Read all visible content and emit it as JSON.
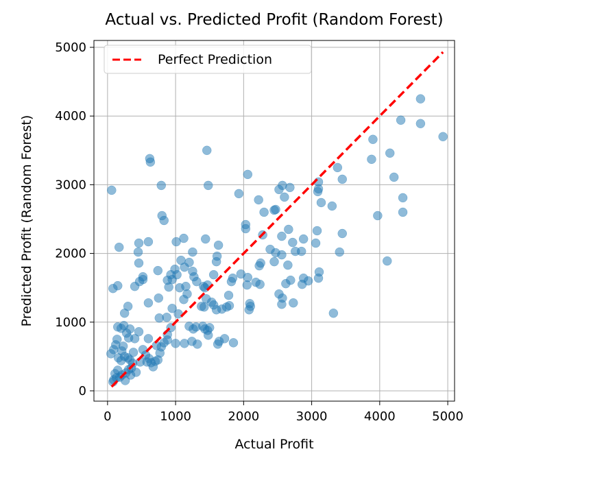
{
  "chart_data": {
    "type": "scatter",
    "title": "Actual vs. Predicted Profit (Random Forest)",
    "xlabel": "Actual Profit",
    "ylabel": "Predicted Profit (Random Forest)",
    "xlim": [
      -200,
      5100
    ],
    "ylim": [
      -150,
      5100
    ],
    "xticks": [
      0,
      1000,
      2000,
      3000,
      4000,
      5000
    ],
    "yticks": [
      0,
      1000,
      2000,
      3000,
      4000,
      5000
    ],
    "grid": true,
    "legend": {
      "position": "upper-left",
      "entries": [
        "Perfect Prediction"
      ]
    },
    "point_color": "#1f77b4",
    "line_color": "#ff0000",
    "reference_line": {
      "name": "Perfect Prediction",
      "x": [
        60,
        4930
      ],
      "y": [
        60,
        4930
      ],
      "style": "dashed"
    },
    "points": [
      [
        60,
        2920
      ],
      [
        80,
        1490
      ],
      [
        150,
        1530
      ],
      [
        170,
        2090
      ],
      [
        460,
        2150
      ],
      [
        450,
        2020
      ],
      [
        460,
        1860
      ],
      [
        600,
        2170
      ],
      [
        620,
        3380
      ],
      [
        630,
        3330
      ],
      [
        790,
        2990
      ],
      [
        800,
        2550
      ],
      [
        830,
        2480
      ],
      [
        1120,
        2220
      ],
      [
        1010,
        2170
      ],
      [
        1250,
        2020
      ],
      [
        1460,
        3500
      ],
      [
        1480,
        2990
      ],
      [
        1440,
        2210
      ],
      [
        1630,
        2120
      ],
      [
        1610,
        1960
      ],
      [
        1600,
        1880
      ],
      [
        1930,
        2870
      ],
      [
        2060,
        3150
      ],
      [
        2030,
        2420
      ],
      [
        2030,
        2360
      ],
      [
        2220,
        2780
      ],
      [
        2300,
        2600
      ],
      [
        2450,
        2630
      ],
      [
        2470,
        2640
      ],
      [
        2520,
        2930
      ],
      [
        2570,
        2990
      ],
      [
        2680,
        2960
      ],
      [
        2600,
        2820
      ],
      [
        3100,
        3040
      ],
      [
        3100,
        2940
      ],
      [
        3090,
        2900
      ],
      [
        3140,
        2740
      ],
      [
        3300,
        2690
      ],
      [
        3380,
        3250
      ],
      [
        3450,
        3080
      ],
      [
        3450,
        2290
      ],
      [
        3410,
        2020
      ],
      [
        3320,
        1130
      ],
      [
        3880,
        3370
      ],
      [
        3900,
        3660
      ],
      [
        3970,
        2550
      ],
      [
        4110,
        1890
      ],
      [
        4150,
        3460
      ],
      [
        4210,
        3110
      ],
      [
        4310,
        3940
      ],
      [
        4340,
        2810
      ],
      [
        4340,
        2600
      ],
      [
        4600,
        4250
      ],
      [
        4600,
        3890
      ],
      [
        4930,
        3700
      ],
      [
        2660,
        2350
      ],
      [
        2720,
        2160
      ],
      [
        2850,
        2030
      ],
      [
        2880,
        2210
      ],
      [
        2560,
        2250
      ],
      [
        2760,
        2030
      ],
      [
        3060,
        2150
      ],
      [
        3080,
        2330
      ],
      [
        3110,
        1730
      ],
      [
        3100,
        1640
      ],
      [
        2240,
        1550
      ],
      [
        2180,
        1580
      ],
      [
        2520,
        1410
      ],
      [
        2570,
        1350
      ],
      [
        2560,
        1260
      ],
      [
        2730,
        1280
      ],
      [
        2620,
        1560
      ],
      [
        2690,
        1610
      ],
      [
        2880,
        1640
      ],
      [
        2860,
        1550
      ],
      [
        2950,
        1600
      ],
      [
        2280,
        2270
      ],
      [
        2390,
        2060
      ],
      [
        2450,
        1880
      ],
      [
        2560,
        1980
      ],
      [
        2650,
        1830
      ],
      [
        2470,
        2010
      ],
      [
        2230,
        1820
      ],
      [
        2250,
        1860
      ],
      [
        2060,
        1650
      ],
      [
        2050,
        1540
      ],
      [
        2090,
        1270
      ],
      [
        2080,
        1180
      ],
      [
        2100,
        1230
      ],
      [
        1960,
        1700
      ],
      [
        1820,
        1590
      ],
      [
        1840,
        1640
      ],
      [
        1780,
        1390
      ],
      [
        1790,
        1240
      ],
      [
        1750,
        1220
      ],
      [
        1680,
        1190
      ],
      [
        1850,
        700
      ],
      [
        1720,
        760
      ],
      [
        1640,
        720
      ],
      [
        1620,
        680
      ],
      [
        1560,
        1690
      ],
      [
        1470,
        1540
      ],
      [
        1430,
        1500
      ],
      [
        1410,
        1520
      ],
      [
        1450,
        1340
      ],
      [
        1380,
        1230
      ],
      [
        1420,
        1220
      ],
      [
        1270,
        1660
      ],
      [
        1250,
        1740
      ],
      [
        1310,
        1590
      ],
      [
        1200,
        1870
      ],
      [
        1130,
        1800
      ],
      [
        1080,
        1900
      ],
      [
        1020,
        1690
      ],
      [
        990,
        1770
      ],
      [
        950,
        1620
      ],
      [
        900,
        1510
      ],
      [
        880,
        1610
      ],
      [
        930,
        1690
      ],
      [
        1060,
        1500
      ],
      [
        1170,
        1410
      ],
      [
        1120,
        1330
      ],
      [
        1150,
        1520
      ],
      [
        1040,
        1120
      ],
      [
        950,
        1200
      ],
      [
        870,
        1070
      ],
      [
        760,
        1060
      ],
      [
        750,
        1350
      ],
      [
        740,
        1750
      ],
      [
        600,
        1280
      ],
      [
        520,
        1660
      ],
      [
        520,
        1620
      ],
      [
        470,
        1590
      ],
      [
        400,
        1520
      ],
      [
        300,
        1230
      ],
      [
        250,
        1130
      ],
      [
        240,
        950
      ],
      [
        200,
        910
      ],
      [
        150,
        930
      ],
      [
        140,
        750
      ],
      [
        120,
        670
      ],
      [
        90,
        600
      ],
      [
        50,
        540
      ],
      [
        160,
        480
      ],
      [
        200,
        440
      ],
      [
        250,
        500
      ],
      [
        300,
        480
      ],
      [
        330,
        450
      ],
      [
        370,
        400
      ],
      [
        350,
        330
      ],
      [
        310,
        310
      ],
      [
        270,
        260
      ],
      [
        210,
        230
      ],
      [
        180,
        200
      ],
      [
        130,
        190
      ],
      [
        90,
        160
      ],
      [
        80,
        130
      ],
      [
        110,
        250
      ],
      [
        150,
        300
      ],
      [
        260,
        150
      ],
      [
        340,
        230
      ],
      [
        420,
        270
      ],
      [
        480,
        420
      ],
      [
        520,
        600
      ],
      [
        560,
        520
      ],
      [
        610,
        470
      ],
      [
        640,
        410
      ],
      [
        670,
        350
      ],
      [
        700,
        430
      ],
      [
        740,
        450
      ],
      [
        770,
        550
      ],
      [
        790,
        640
      ],
      [
        830,
        700
      ],
      [
        880,
        740
      ],
      [
        930,
        920
      ],
      [
        880,
        820
      ],
      [
        720,
        660
      ],
      [
        600,
        760
      ],
      [
        460,
        860
      ],
      [
        400,
        760
      ],
      [
        330,
        900
      ],
      [
        310,
        770
      ],
      [
        280,
        840
      ],
      [
        230,
        650
      ],
      [
        210,
        580
      ],
      [
        380,
        560
      ],
      [
        580,
        420
      ],
      [
        1000,
        690
      ],
      [
        1130,
        690
      ],
      [
        1240,
        720
      ],
      [
        1320,
        680
      ],
      [
        1200,
        940
      ],
      [
        1260,
        900
      ],
      [
        1300,
        930
      ],
      [
        1400,
        940
      ],
      [
        1470,
        880
      ],
      [
        1500,
        920
      ],
      [
        1480,
        810
      ],
      [
        1430,
        900
      ],
      [
        1560,
        1250
      ],
      [
        1600,
        1180
      ],
      [
        1530,
        1290
      ]
    ]
  }
}
